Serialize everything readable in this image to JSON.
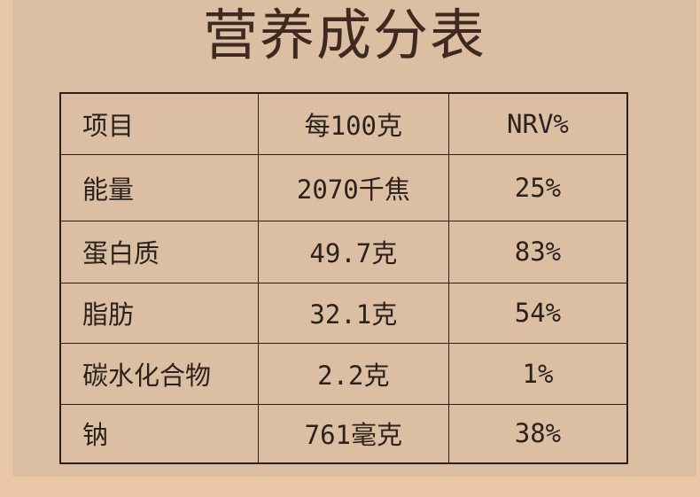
{
  "title": "营养成分表",
  "table": {
    "headers": [
      "项目",
      "每100克",
      "NRV%"
    ],
    "rows": [
      {
        "item": "能量",
        "per100g": "2070千焦",
        "nrv": "25%"
      },
      {
        "item": "蛋白质",
        "per100g": "49.7克",
        "nrv": "83%"
      },
      {
        "item": "脂肪",
        "per100g": "32.1克",
        "nrv": "54%"
      },
      {
        "item": "碳水化合物",
        "per100g": "2.2克",
        "nrv": "1%"
      },
      {
        "item": "钠",
        "per100g": "761毫克",
        "nrv": "38%"
      }
    ]
  }
}
